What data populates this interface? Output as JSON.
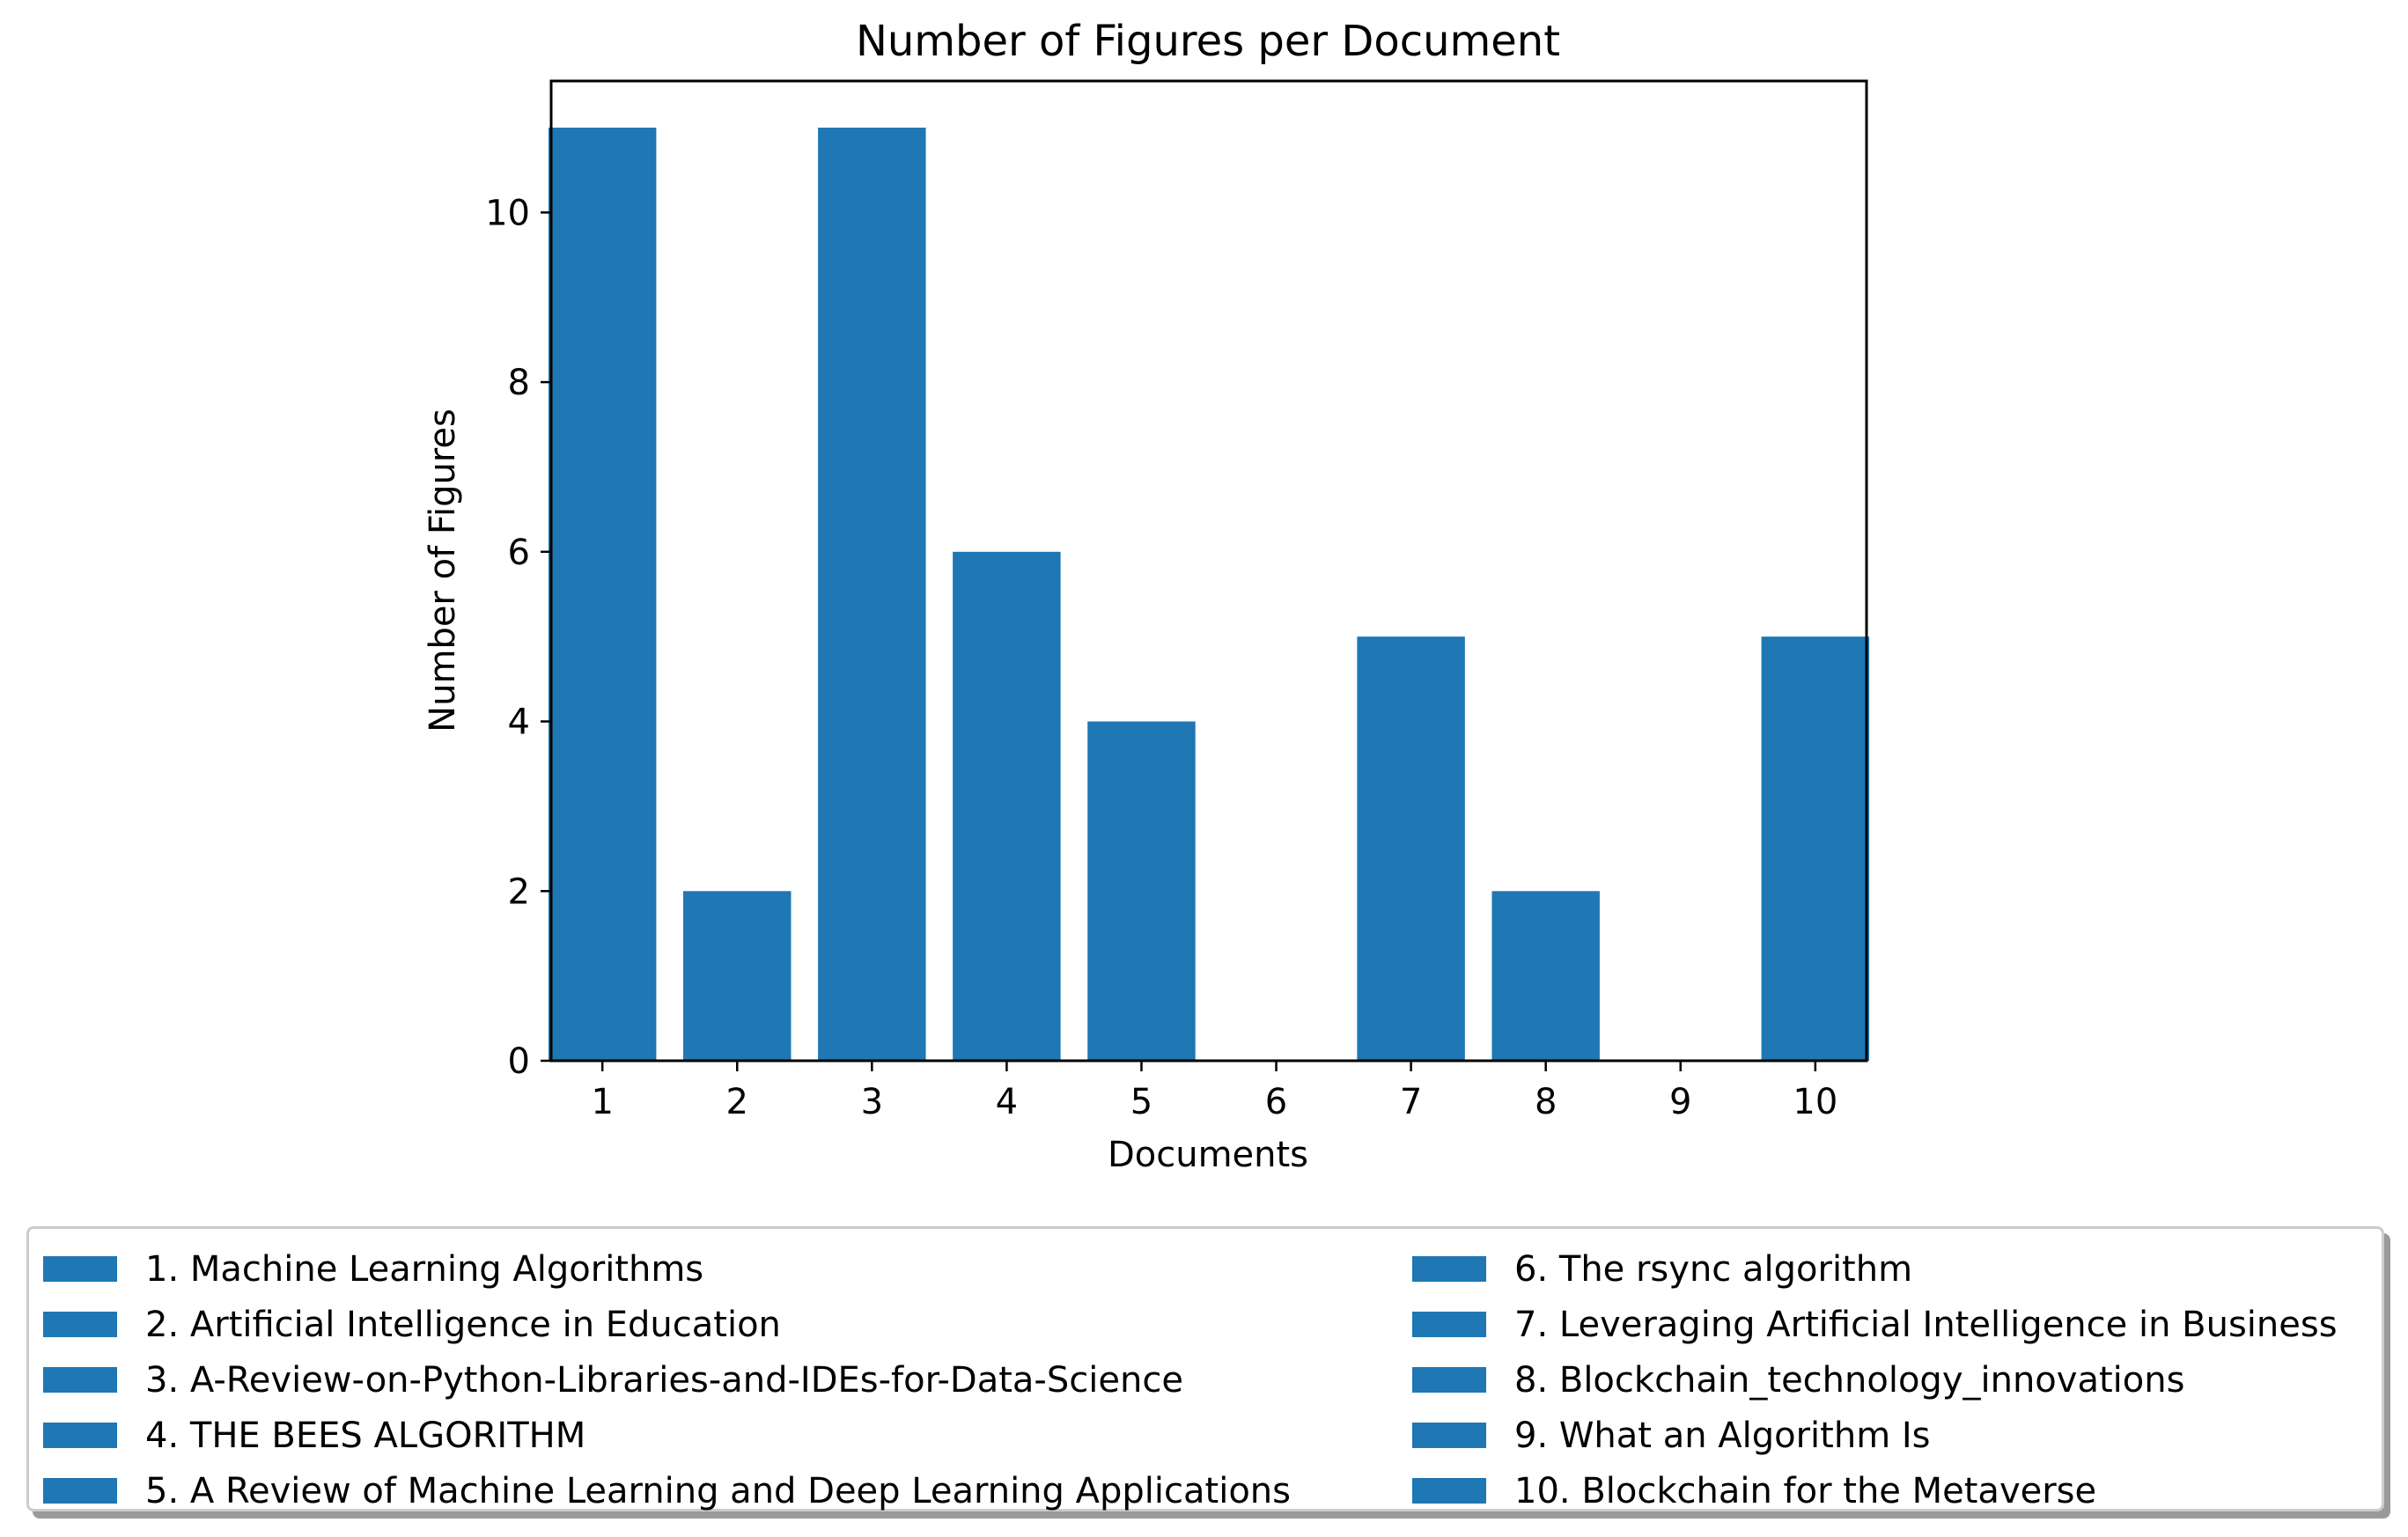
{
  "chart_data": {
    "type": "bar",
    "title": "Number of Figures per Document",
    "xlabel": "Documents",
    "ylabel": "Number of Figures",
    "categories": [
      "1",
      "2",
      "3",
      "4",
      "5",
      "6",
      "7",
      "8",
      "9",
      "10"
    ],
    "values": [
      11,
      2,
      11,
      6,
      4,
      0,
      5,
      2,
      0,
      5
    ],
    "ylim": [
      0,
      11.55
    ],
    "yticks": [
      0,
      2,
      4,
      6,
      8,
      10
    ],
    "bar_color": "#1f77b4",
    "grid": false,
    "legend": {
      "placement": "below",
      "columns": 2,
      "entries": [
        "1. Machine Learning Algorithms",
        "2. Artificial Intelligence in Education",
        "3. A-Review-on-Python-Libraries-and-IDEs-for-Data-Science",
        "4. THE BEES ALGORITHM",
        "5. A Review of Machine Learning and Deep Learning Applications",
        "6. The rsync algorithm",
        "7. Leveraging Artificial Intelligence in Business",
        "8. Blockchain_technology_innovations",
        "9. What an Algorithm Is",
        "10. Blockchain for the Metaverse"
      ]
    }
  }
}
